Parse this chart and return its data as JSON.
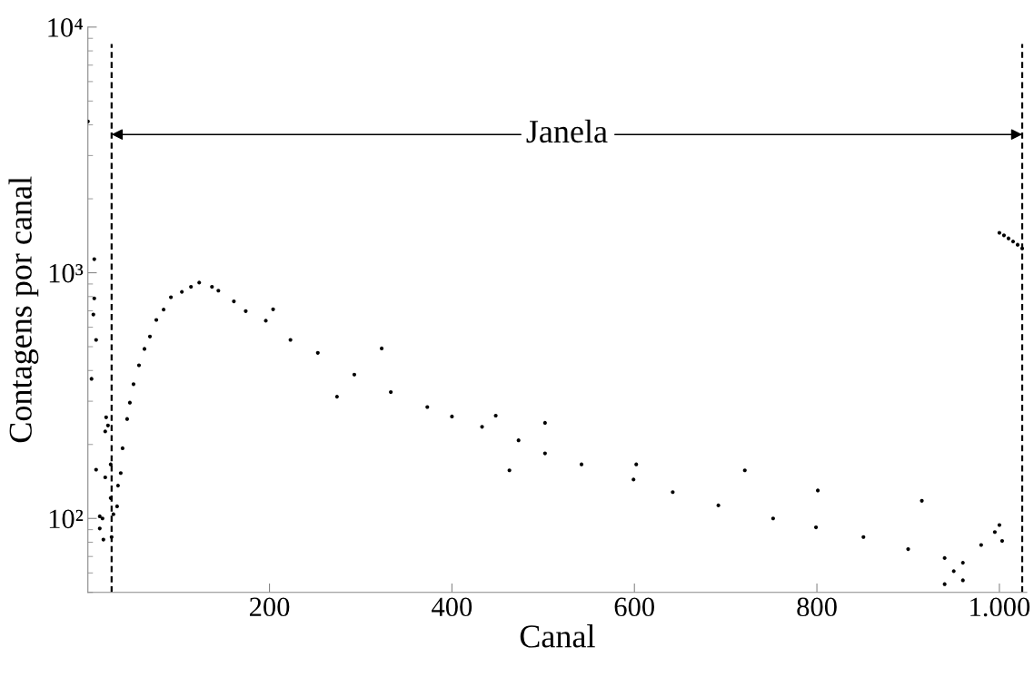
{
  "chart_data": {
    "type": "scatter",
    "xlabel": "Canal",
    "ylabel": "Contagens por canal",
    "log": "y",
    "xlim": [
      1,
      1030
    ],
    "ylim": [
      50,
      10000
    ],
    "xticks": [
      200,
      400,
      600,
      800,
      {
        "value": 1000,
        "label": "1.000"
      }
    ],
    "yticks": [
      {
        "value": 100,
        "label": "10²"
      },
      {
        "value": 1000,
        "label": "10³"
      },
      {
        "value": 10000,
        "label": "10⁴"
      }
    ],
    "grid": false,
    "marker": "circle",
    "series": [
      {
        "color": "#000000",
        "x": [
          1,
          8,
          8,
          7,
          10,
          5,
          10,
          14,
          17,
          14,
          18,
          21,
          20,
          23,
          20,
          26,
          26,
          27,
          29,
          33,
          34,
          37,
          39,
          44,
          47,
          51,
          57,
          63,
          69,
          76,
          84,
          92,
          104,
          114,
          123,
          137,
          144,
          161,
          174,
          196,
          204,
          223,
          253,
          274,
          293,
          323,
          333,
          373,
          400,
          433,
          448,
          463,
          473,
          502,
          502,
          542,
          599,
          602,
          642,
          692,
          721,
          752,
          799,
          801,
          851,
          900,
          915,
          940,
          940,
          950,
          960,
          960,
          980,
          995,
          1000,
          1003,
          1000,
          1005,
          1010,
          1015,
          1020,
          1025
        ],
        "values": [
          4130,
          1136,
          787,
          676,
          533,
          370,
          158,
          102,
          100,
          91,
          82,
          258,
          226,
          239,
          147,
          166,
          121,
          84,
          104,
          112,
          136,
          153,
          193,
          254,
          296,
          352,
          420,
          490,
          550,
          643,
          708,
          795,
          836,
          877,
          912,
          877,
          846,
          765,
          698,
          638,
          710,
          533,
          472,
          313,
          385,
          492,
          327,
          284,
          260,
          236,
          262,
          157,
          208,
          184,
          245,
          166,
          144,
          166,
          128,
          113,
          157,
          100,
          92,
          130,
          84,
          75,
          118,
          69,
          54,
          61,
          66,
          56,
          78,
          88,
          94,
          81,
          1455,
          1420,
          1380,
          1340,
          1300,
          1256
        ]
      }
    ],
    "ref_lines": [
      {
        "axis": "x",
        "value": 27,
        "color": "#000000",
        "line_style": "dashed"
      },
      {
        "axis": "x",
        "value": 1025,
        "color": "#000000",
        "line_style": "dashed"
      }
    ],
    "annotations": [
      "Janela"
    ]
  }
}
